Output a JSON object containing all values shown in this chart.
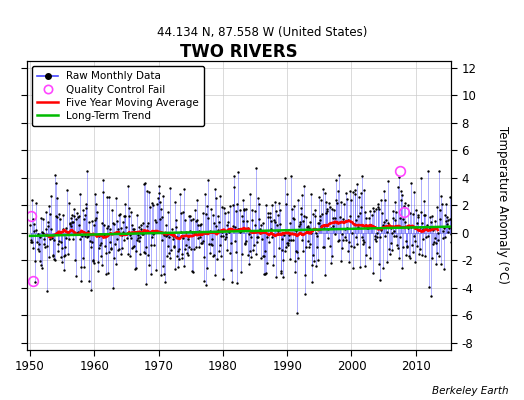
{
  "title": "TWO RIVERS",
  "subtitle": "44.134 N, 87.558 W (United States)",
  "ylabel": "Temperature Anomaly (°C)",
  "credit": "Berkeley Earth",
  "ylim": [
    -8.5,
    12.5
  ],
  "yticks": [
    -8,
    -6,
    -4,
    -2,
    0,
    2,
    4,
    6,
    8,
    10,
    12
  ],
  "xlim": [
    1949.5,
    2015.5
  ],
  "xticks": [
    1950,
    1960,
    1970,
    1980,
    1990,
    2000,
    2010
  ],
  "background_color": "#ffffff",
  "plot_bg_color": "#ffffff",
  "raw_line_color": "#4444ff",
  "raw_marker_color": "#000000",
  "qc_fail_color": "#ff44ff",
  "moving_avg_color": "#ff0000",
  "trend_color": "#00bb00",
  "grid_color": "#cccccc",
  "seed": 42
}
